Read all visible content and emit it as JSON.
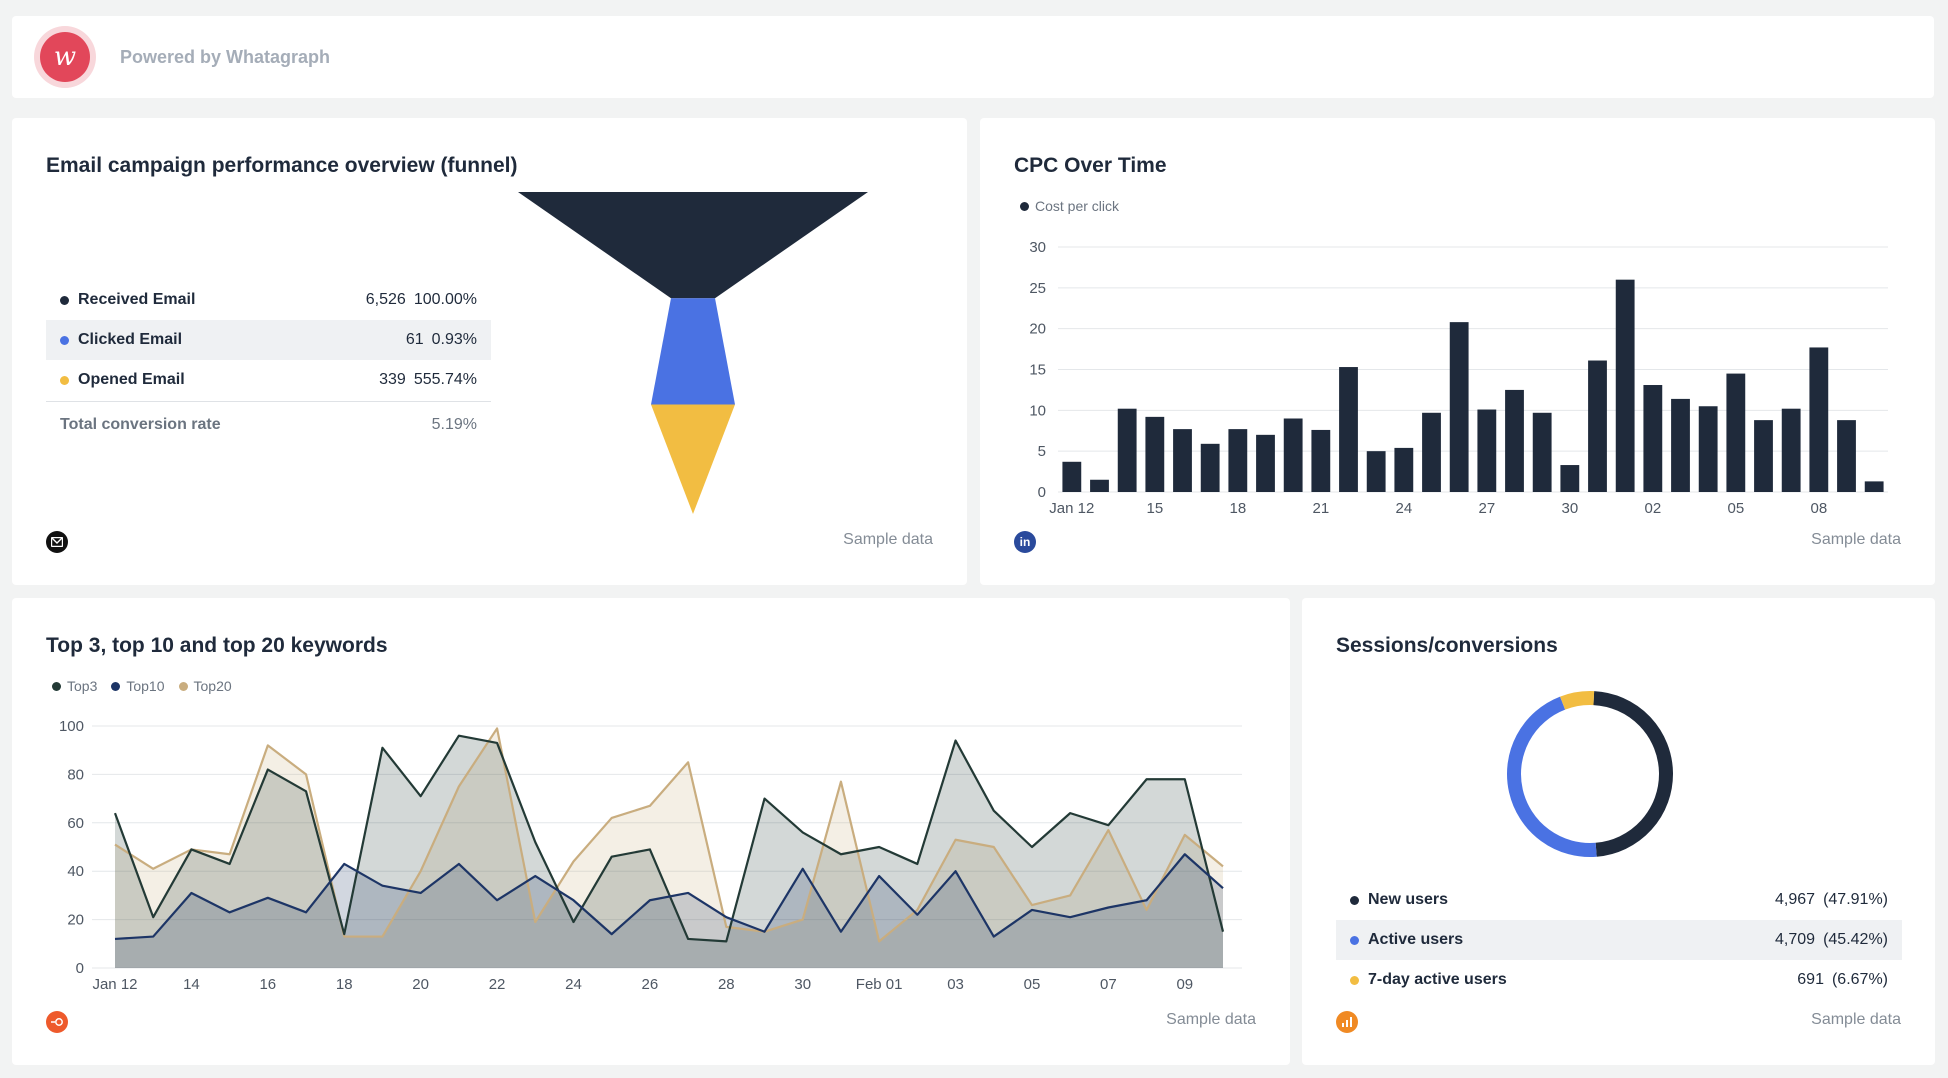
{
  "header": {
    "powered_by": "Powered by Whatagraph"
  },
  "funnel_card": {
    "title": "Email campaign performance overview (funnel)",
    "rows": [
      {
        "label": "Received Email",
        "value": "6,526",
        "pct": "100.00%",
        "color": "#1f2a3b"
      },
      {
        "label": "Clicked Email",
        "value": "61",
        "pct": "0.93%",
        "color": "#4a72e3"
      },
      {
        "label": "Opened Email",
        "value": "339",
        "pct": "555.74%",
        "color": "#f2bd42"
      }
    ],
    "total_label": "Total conversion rate",
    "total_value": "5.19%",
    "sample": "Sample data",
    "chart_data": {
      "type": "funnel",
      "categories": [
        "Received Email",
        "Clicked Email",
        "Opened Email"
      ],
      "values": [
        6526,
        61,
        339
      ],
      "colors": [
        "#1f2a3b",
        "#4a72e3",
        "#f2bd42"
      ]
    }
  },
  "cpc_card": {
    "title": "CPC Over Time",
    "legend": "Cost per click",
    "sample": "Sample data",
    "chart_data": {
      "type": "bar",
      "series": [
        {
          "name": "Cost per click",
          "values": [
            3.7,
            1.5,
            10.2,
            9.2,
            7.7,
            5.9,
            7.7,
            7.0,
            9.0,
            7.6,
            15.3,
            5.0,
            5.4,
            9.7,
            20.8,
            10.1,
            12.5,
            9.7,
            3.3,
            16.1,
            26.0,
            13.1,
            11.4,
            10.5,
            14.5,
            8.8,
            10.2,
            17.7,
            8.8,
            1.3
          ]
        }
      ],
      "x_tick_labels": [
        "Jan 12",
        "15",
        "18",
        "21",
        "24",
        "27",
        "30",
        "02",
        "05",
        "08"
      ],
      "y_ticks": [
        0,
        5,
        10,
        15,
        20,
        25,
        30
      ],
      "ylim": [
        0,
        30
      ],
      "grid": true,
      "color": "#1f2a3b"
    }
  },
  "keywords_card": {
    "title": "Top 3, top 10 and top 20 keywords",
    "legend": [
      {
        "name": "Top3",
        "color": "#233a36"
      },
      {
        "name": "Top10",
        "color": "#1d3566"
      },
      {
        "name": "Top20",
        "color": "#c9ad7f"
      }
    ],
    "sample": "Sample data",
    "chart_data": {
      "type": "area",
      "x_tick_labels": [
        "Jan 12",
        "14",
        "16",
        "18",
        "20",
        "22",
        "24",
        "26",
        "28",
        "30",
        "Feb 01",
        "03",
        "05",
        "07",
        "09"
      ],
      "y_ticks": [
        0,
        20,
        40,
        60,
        80,
        100
      ],
      "ylim": [
        0,
        100
      ],
      "grid": true,
      "series": [
        {
          "name": "Top3",
          "color": "#233a36",
          "values": [
            64,
            21,
            49,
            43,
            82,
            73,
            14,
            91,
            71,
            96,
            93,
            52,
            19,
            46,
            49,
            12,
            11,
            70,
            56,
            47,
            50,
            43,
            94,
            65,
            50,
            64,
            59,
            78,
            78,
            15
          ]
        },
        {
          "name": "Top10",
          "color": "#1d3566",
          "values": [
            12,
            13,
            31,
            23,
            29,
            23,
            43,
            34,
            31,
            43,
            28,
            38,
            28,
            14,
            28,
            31,
            21,
            15,
            41,
            15,
            38,
            22,
            40,
            13,
            24,
            21,
            25,
            28,
            47,
            33
          ]
        },
        {
          "name": "Top20",
          "color": "#c9ad7f",
          "values": [
            51,
            41,
            49,
            47,
            92,
            80,
            13,
            13,
            40,
            75,
            99,
            19,
            44,
            62,
            67,
            85,
            17,
            15,
            20,
            77,
            11,
            24,
            53,
            50,
            26,
            30,
            57,
            24,
            55,
            42
          ]
        }
      ]
    }
  },
  "sessions_card": {
    "title": "Sessions/conversions",
    "rows": [
      {
        "label": "New users",
        "value": "4,967",
        "pct": "(47.91%)",
        "color": "#1f2a3b"
      },
      {
        "label": "Active users",
        "value": "4,709",
        "pct": "(45.42%)",
        "color": "#4a72e3"
      },
      {
        "label": "7-day active users",
        "value": "691",
        "pct": "(6.67%)",
        "color": "#f2bd42"
      }
    ],
    "sample": "Sample data",
    "chart_data": {
      "type": "pie",
      "categories": [
        "New users",
        "Active users",
        "7-day active users"
      ],
      "values": [
        4967,
        4709,
        691
      ],
      "colors": [
        "#1f2a3b",
        "#4a72e3",
        "#f2bd42"
      ]
    }
  }
}
